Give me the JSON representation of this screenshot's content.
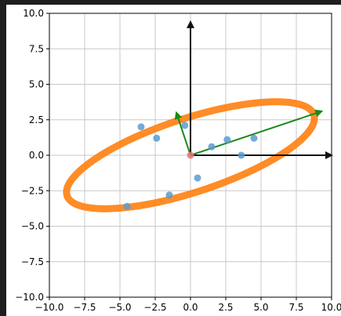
{
  "chart_data": {
    "type": "scatter",
    "title": "",
    "xlabel": "",
    "ylabel": "",
    "xlim": [
      -10,
      10
    ],
    "ylim": [
      -10,
      10
    ],
    "grid": true,
    "xticks": [
      -10,
      -7.5,
      -5,
      -2.5,
      0,
      2.5,
      5,
      7.5,
      10
    ],
    "yticks": [
      -10,
      -7.5,
      -5,
      -2.5,
      0,
      2.5,
      5,
      7.5,
      10
    ],
    "xtick_labels": [
      "−10.0",
      "−7.5",
      "−5.0",
      "−2.5",
      "0.0",
      "2.5",
      "5.0",
      "7.5",
      "10.0"
    ],
    "ytick_labels": [
      "−10.0",
      "−7.5",
      "−5.0",
      "−2.5",
      "0.0",
      "2.5",
      "5.0",
      "7.5",
      "10.0"
    ],
    "points": [
      {
        "x": -3.5,
        "y": 2.0
      },
      {
        "x": -2.4,
        "y": 1.2
      },
      {
        "x": -0.4,
        "y": 2.1
      },
      {
        "x": 1.5,
        "y": 0.6
      },
      {
        "x": 2.6,
        "y": 1.1
      },
      {
        "x": 3.6,
        "y": 0.0
      },
      {
        "x": 4.5,
        "y": 1.2
      },
      {
        "x": 0.5,
        "y": -1.6
      },
      {
        "x": -1.5,
        "y": -2.8
      },
      {
        "x": -4.5,
        "y": -3.6
      }
    ],
    "center_point": {
      "x": 0,
      "y": 0
    },
    "axes_arrows": [
      {
        "x0": 0,
        "y0": 0,
        "x1": 0,
        "y1": 9.4
      },
      {
        "x0": 0,
        "y0": 0,
        "x1": 10.0,
        "y1": 0
      }
    ],
    "principal_arrows": [
      {
        "x0": 0,
        "y0": 0,
        "x1": 9.3,
        "y1": 3.1
      },
      {
        "x0": 0,
        "y0": 0,
        "x1": -1.0,
        "y1": 3.0
      }
    ],
    "ellipse": {
      "cx": 0,
      "cy": 0,
      "semi_major": 9.2,
      "semi_minor": 2.6,
      "angle_deg": 18
    },
    "colors": {
      "points": "#5a9bd0",
      "center": "#e8736c",
      "ellipse": "#ff7f0e",
      "principal_arrows": "#1a8a1a",
      "axes_arrows": "#111111",
      "grid": "#c8c8c8",
      "background": "#1e1e1e"
    }
  }
}
